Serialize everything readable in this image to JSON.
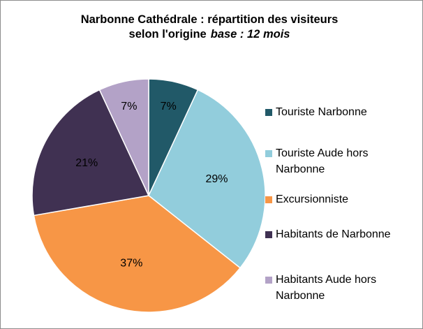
{
  "chart_data": {
    "type": "pie",
    "title": "Narbonne Cathédrale : répartition des visiteurs selon l'origine",
    "subtitle": "base : 12 mois",
    "categories": [
      "Touriste Narbonne",
      "Touriste Aude hors Narbonne",
      "Excursionniste",
      "Habitants de Narbonne",
      "Habitants Aude hors Narbonne"
    ],
    "values": [
      7,
      29,
      37,
      21,
      7
    ],
    "value_labels": [
      "7%",
      "29%",
      "37%",
      "21%",
      "7%"
    ],
    "colors": [
      "#215968",
      "#92CDDC",
      "#F79646",
      "#403152",
      "#B3A2C7"
    ],
    "legend": "right"
  }
}
